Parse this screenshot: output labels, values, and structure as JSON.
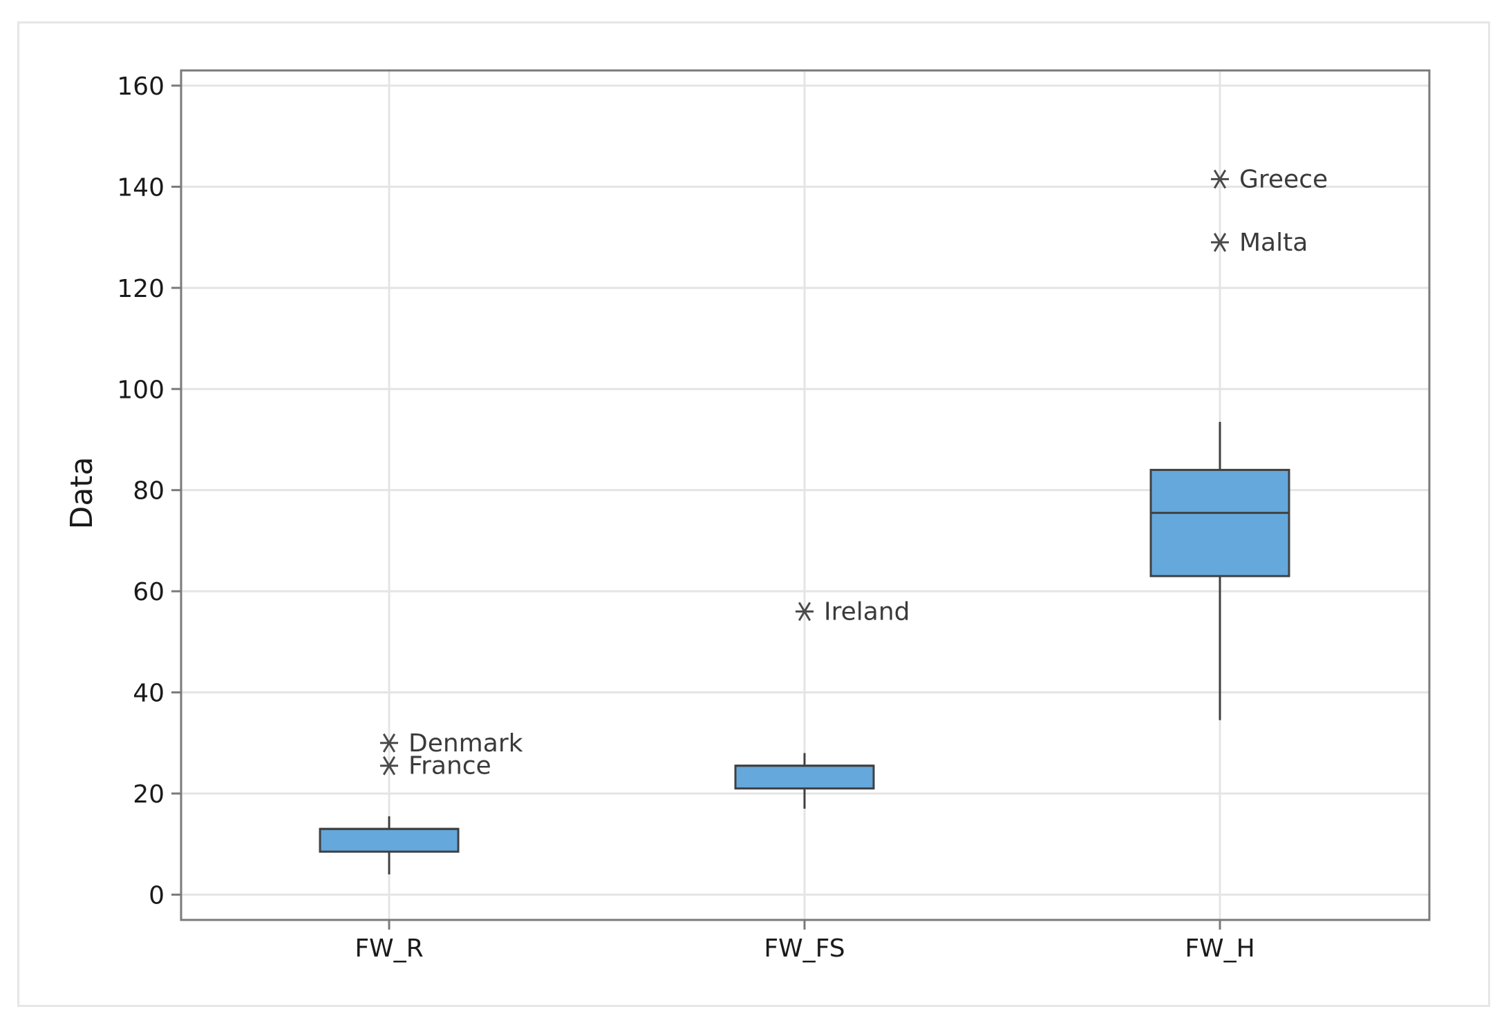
{
  "chart_data": {
    "type": "box",
    "ylabel": "Data",
    "xlabel": "",
    "ylim": [
      -5,
      163
    ],
    "yticks": [
      0,
      20,
      40,
      60,
      80,
      100,
      120,
      140,
      160
    ],
    "grid": true,
    "colors": {
      "box_fill": "#65a8dc",
      "box_stroke": "#404040",
      "grid": "#e4e4e4",
      "outlier": "#4a4a4a"
    },
    "categories": [
      "FW_R",
      "FW_FS",
      "FW_H"
    ],
    "boxes": [
      {
        "category": "FW_R",
        "whisker_low": 4,
        "q1": 8.5,
        "median": 13,
        "q3": 13,
        "whisker_high": 15.5,
        "outliers": [
          {
            "label": "Denmark",
            "value": 30
          },
          {
            "label": "France",
            "value": 25.5
          }
        ]
      },
      {
        "category": "FW_FS",
        "whisker_low": 17,
        "q1": 21,
        "median": 25.5,
        "q3": 25.5,
        "whisker_high": 28,
        "outliers": [
          {
            "label": "Ireland",
            "value": 56
          }
        ]
      },
      {
        "category": "FW_H",
        "whisker_low": 34.5,
        "q1": 63,
        "median": 75.5,
        "q3": 84,
        "whisker_high": 93.5,
        "outliers": [
          {
            "label": "Greece",
            "value": 141.5
          },
          {
            "label": "Malta",
            "value": 129
          }
        ]
      }
    ]
  }
}
